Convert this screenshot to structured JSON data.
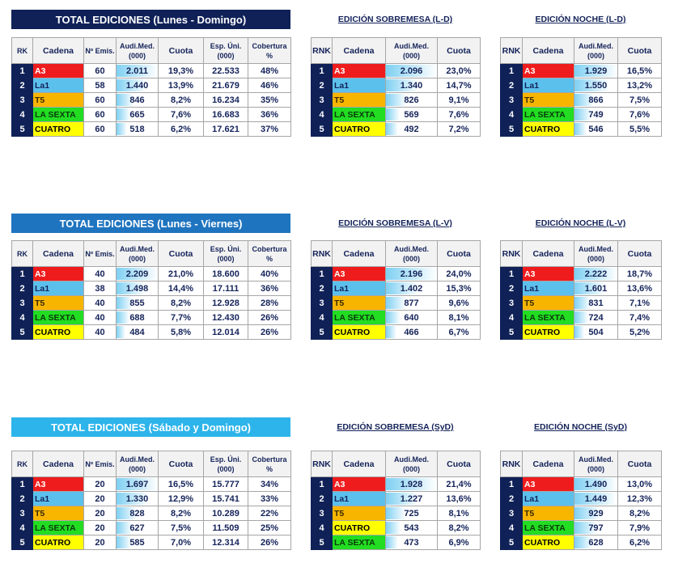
{
  "colors": {
    "navy": "#0f2157",
    "mid_blue": "#1f74bf",
    "light_blue": "#2db4ea",
    "A3": "#ee1c1c",
    "La1": "#5cc0ec",
    "T5": "#f7b500",
    "LA SEXTA": "#22dd22",
    "CUATRO": "#ffff00"
  },
  "headers": {
    "main": [
      "RK",
      "Cadena",
      "Nº Emis.",
      "Audi.Med. (000)",
      "Cuota",
      "Esp. Úni. (000)",
      "Cobertura %"
    ],
    "sub": [
      "RNK",
      "Cadena",
      "Audi.Med. (000)",
      "Cuota"
    ]
  },
  "sections": [
    {
      "title": "TOTAL EDICIONES (Lunes - Domingo)",
      "sobremesa_title": "EDICIÓN SOBREMESA (L-D)",
      "noche_title": "EDICIÓN NOCHE (L-D)",
      "total": [
        [
          "1",
          "A3",
          "60",
          "2.011",
          "19,3%",
          "22.533",
          "48%"
        ],
        [
          "2",
          "La1",
          "58",
          "1.440",
          "13,9%",
          "21.679",
          "46%"
        ],
        [
          "3",
          "T5",
          "60",
          "846",
          "8,2%",
          "16.234",
          "35%"
        ],
        [
          "4",
          "LA SEXTA",
          "60",
          "665",
          "7,6%",
          "16.683",
          "36%"
        ],
        [
          "5",
          "CUATRO",
          "60",
          "518",
          "6,2%",
          "17.621",
          "37%"
        ]
      ],
      "sobremesa": [
        [
          "1",
          "A3",
          "2.096",
          "23,0%"
        ],
        [
          "2",
          "La1",
          "1.340",
          "14,7%"
        ],
        [
          "3",
          "T5",
          "826",
          "9,1%"
        ],
        [
          "4",
          "LA SEXTA",
          "569",
          "7,6%"
        ],
        [
          "5",
          "CUATRO",
          "492",
          "7,2%"
        ]
      ],
      "noche": [
        [
          "1",
          "A3",
          "1.929",
          "16,5%"
        ],
        [
          "2",
          "La1",
          "1.550",
          "13,2%"
        ],
        [
          "3",
          "T5",
          "866",
          "7,5%"
        ],
        [
          "4",
          "LA SEXTA",
          "749",
          "7,6%"
        ],
        [
          "5",
          "CUATRO",
          "546",
          "5,5%"
        ]
      ]
    },
    {
      "title": "TOTAL EDICIONES (Lunes - Viernes)",
      "sobremesa_title": "EDICIÓN SOBREMESA  (L-V)",
      "noche_title": "EDICIÓN NOCHE (L-V)",
      "total": [
        [
          "1",
          "A3",
          "40",
          "2.209",
          "21,0%",
          "18.600",
          "40%"
        ],
        [
          "2",
          "La1",
          "38",
          "1.498",
          "14,4%",
          "17.111",
          "36%"
        ],
        [
          "3",
          "T5",
          "40",
          "855",
          "8,2%",
          "12.928",
          "28%"
        ],
        [
          "4",
          "LA SEXTA",
          "40",
          "688",
          "7,7%",
          "12.430",
          "26%"
        ],
        [
          "5",
          "CUATRO",
          "40",
          "484",
          "5,8%",
          "12.014",
          "26%"
        ]
      ],
      "sobremesa": [
        [
          "1",
          "A3",
          "2.196",
          "24,0%"
        ],
        [
          "2",
          "La1",
          "1.402",
          "15,3%"
        ],
        [
          "3",
          "T5",
          "877",
          "9,6%"
        ],
        [
          "4",
          "LA SEXTA",
          "640",
          "8,1%"
        ],
        [
          "5",
          "CUATRO",
          "466",
          "6,7%"
        ]
      ],
      "noche": [
        [
          "1",
          "A3",
          "2.222",
          "18,7%"
        ],
        [
          "2",
          "La1",
          "1.601",
          "13,6%"
        ],
        [
          "3",
          "T5",
          "831",
          "7,1%"
        ],
        [
          "4",
          "LA SEXTA",
          "724",
          "7,4%"
        ],
        [
          "5",
          "CUATRO",
          "504",
          "5,2%"
        ]
      ]
    },
    {
      "title": "TOTAL EDICIONES (Sábado y Domingo)",
      "sobremesa_title": "EDICIÓN SOBREMESA (SyD)",
      "noche_title": "EDICIÓN NOCHE (SyD)",
      "total": [
        [
          "1",
          "A3",
          "20",
          "1.697",
          "16,5%",
          "15.777",
          "34%"
        ],
        [
          "2",
          "La1",
          "20",
          "1.330",
          "12,9%",
          "15.741",
          "33%"
        ],
        [
          "3",
          "T5",
          "20",
          "828",
          "8,2%",
          "10.289",
          "22%"
        ],
        [
          "4",
          "LA SEXTA",
          "20",
          "627",
          "7,5%",
          "11.509",
          "25%"
        ],
        [
          "5",
          "CUATRO",
          "20",
          "585",
          "7,0%",
          "12.314",
          "26%"
        ]
      ],
      "sobremesa": [
        [
          "1",
          "A3",
          "1.928",
          "21,4%"
        ],
        [
          "2",
          "La1",
          "1.227",
          "13,6%"
        ],
        [
          "3",
          "T5",
          "725",
          "8,1%"
        ],
        [
          "4",
          "CUATRO",
          "543",
          "8,2%"
        ],
        [
          "5",
          "LA SEXTA",
          "473",
          "6,9%"
        ]
      ],
      "noche": [
        [
          "1",
          "A3",
          "1.490",
          "13,0%"
        ],
        [
          "2",
          "La1",
          "1.449",
          "12,3%"
        ],
        [
          "3",
          "T5",
          "929",
          "8,2%"
        ],
        [
          "4",
          "LA SEXTA",
          "797",
          "7,9%"
        ],
        [
          "5",
          "CUATRO",
          "628",
          "6,2%"
        ]
      ]
    }
  ]
}
